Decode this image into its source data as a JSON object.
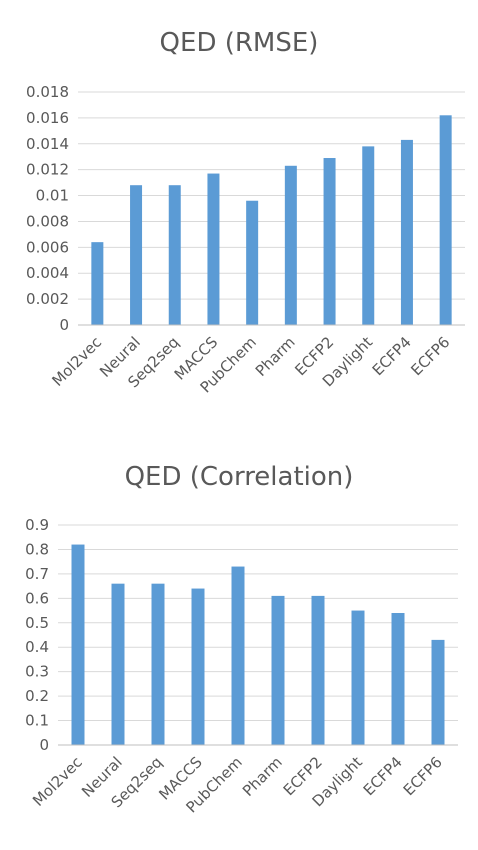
{
  "chart_data": [
    {
      "type": "bar",
      "title": "QED  (RMSE)",
      "categories": [
        "Mol2vec",
        "Neural",
        "Seq2seq",
        "MACCS",
        "PubChem",
        "Pharm",
        "ECFP2",
        "Daylight",
        "ECFP4",
        "ECFP6"
      ],
      "values": [
        0.0064,
        0.0108,
        0.0108,
        0.0117,
        0.0096,
        0.0123,
        0.0129,
        0.0138,
        0.0143,
        0.0162
      ],
      "ylim": [
        0,
        0.018
      ],
      "yticks": [
        "0",
        "0.002",
        "0.004",
        "0.006",
        "0.008",
        "0.01",
        "0.012",
        "0.014",
        "0.016",
        "0.018"
      ],
      "grid": true,
      "bar_color": "#5b9bd5"
    },
    {
      "type": "bar",
      "title": "QED  (Correlation)",
      "categories": [
        "Mol2vec",
        "Neural",
        "Seq2seq",
        "MACCS",
        "PubChem",
        "Pharm",
        "ECFP2",
        "Daylight",
        "ECFP4",
        "ECFP6"
      ],
      "values": [
        0.82,
        0.66,
        0.66,
        0.64,
        0.73,
        0.61,
        0.61,
        0.55,
        0.54,
        0.43
      ],
      "ylim": [
        0,
        0.9
      ],
      "yticks": [
        "0",
        "0.1",
        "0.2",
        "0.3",
        "0.4",
        "0.5",
        "0.6",
        "0.7",
        "0.8",
        "0.9"
      ],
      "grid": true,
      "bar_color": "#5b9bd5"
    }
  ]
}
